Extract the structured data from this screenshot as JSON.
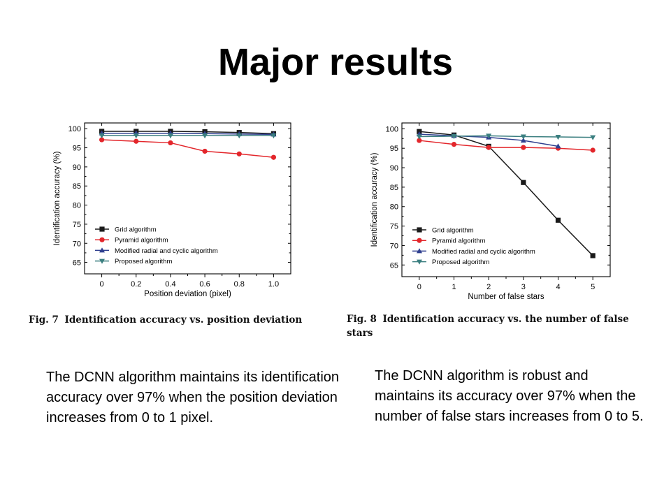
{
  "slide": {
    "title": "Major results",
    "caption_left_label": "Fig. 7",
    "caption_left_text": "Identification accuracy vs. position deviation",
    "caption_right_label": "Fig. 8",
    "caption_right_text": "Identification accuracy vs. the number of false stars",
    "text_left": "The DCNN algorithm maintains its identification accuracy over 97% when the position deviation increases from 0 to 1 pixel.",
    "text_right": "The DCNN algorithm is robust and maintains its accuracy over 97% when the number of false stars increases from 0 to 5."
  },
  "colors": {
    "grid": "#1a1a1a",
    "pyramid": "#e3262b",
    "modified": "#2f3f8f",
    "proposed": "#3b7f80"
  },
  "chart_data": [
    {
      "type": "line",
      "title": "",
      "xlabel": "Position deviation (pixel)",
      "ylabel": "Identification accuracy (%)",
      "x": [
        0,
        0.2,
        0.4,
        0.6,
        0.8,
        1.0
      ],
      "x_tick_labels": [
        "0",
        "0.2",
        "0.4",
        "0.6",
        "0.8",
        "1.0"
      ],
      "y_ticks": [
        65,
        70,
        75,
        80,
        85,
        90,
        95,
        100
      ],
      "xlim": [
        -0.1,
        1.1
      ],
      "ylim": [
        62,
        101.5
      ],
      "legend": "lower-left",
      "series": [
        {
          "name": "Grid algorithm",
          "marker": "square",
          "color_key": "grid",
          "values": [
            99.3,
            99.3,
            99.3,
            99.2,
            99.0,
            98.7
          ]
        },
        {
          "name": "Pyramid algorithm",
          "marker": "circle",
          "color_key": "pyramid",
          "values": [
            97.1,
            96.7,
            96.3,
            94.1,
            93.4,
            92.5
          ]
        },
        {
          "name": "Modified radial and cyclic algorithm",
          "marker": "triangle-up",
          "color_key": "modified",
          "values": [
            98.8,
            98.8,
            98.8,
            98.7,
            98.6,
            98.5
          ]
        },
        {
          "name": "Proposed algorithm",
          "marker": "triangle-down",
          "color_key": "proposed",
          "values": [
            98.2,
            98.2,
            98.2,
            98.2,
            98.2,
            98.2
          ]
        }
      ]
    },
    {
      "type": "line",
      "title": "",
      "xlabel": "Number of false stars",
      "ylabel": "Identification accuracy (%)",
      "x": [
        0,
        1,
        2,
        3,
        4,
        5
      ],
      "x_tick_labels": [
        "0",
        "1",
        "2",
        "3",
        "4",
        "5"
      ],
      "y_ticks": [
        65,
        70,
        75,
        80,
        85,
        90,
        95,
        100
      ],
      "xlim": [
        -0.5,
        5.5
      ],
      "ylim": [
        62,
        101.5
      ],
      "legend": "lower-left",
      "series": [
        {
          "name": "Grid algorithm",
          "marker": "square",
          "color_key": "grid",
          "values": [
            99.3,
            98.4,
            95.5,
            86.2,
            76.5,
            67.4
          ]
        },
        {
          "name": "Pyramid algorithm",
          "marker": "circle",
          "color_key": "pyramid",
          "values": [
            97.0,
            96.0,
            95.2,
            95.2,
            95.0,
            94.5
          ]
        },
        {
          "name": "Modified radial and cyclic algorithm",
          "marker": "triangle-up",
          "color_key": "modified",
          "values": [
            98.6,
            98.2,
            97.8,
            97.0,
            95.5,
            null
          ]
        },
        {
          "name": "Proposed algorithm",
          "marker": "triangle-down",
          "color_key": "proposed",
          "values": [
            98.0,
            98.1,
            98.2,
            98.0,
            97.9,
            97.8
          ]
        }
      ]
    }
  ]
}
